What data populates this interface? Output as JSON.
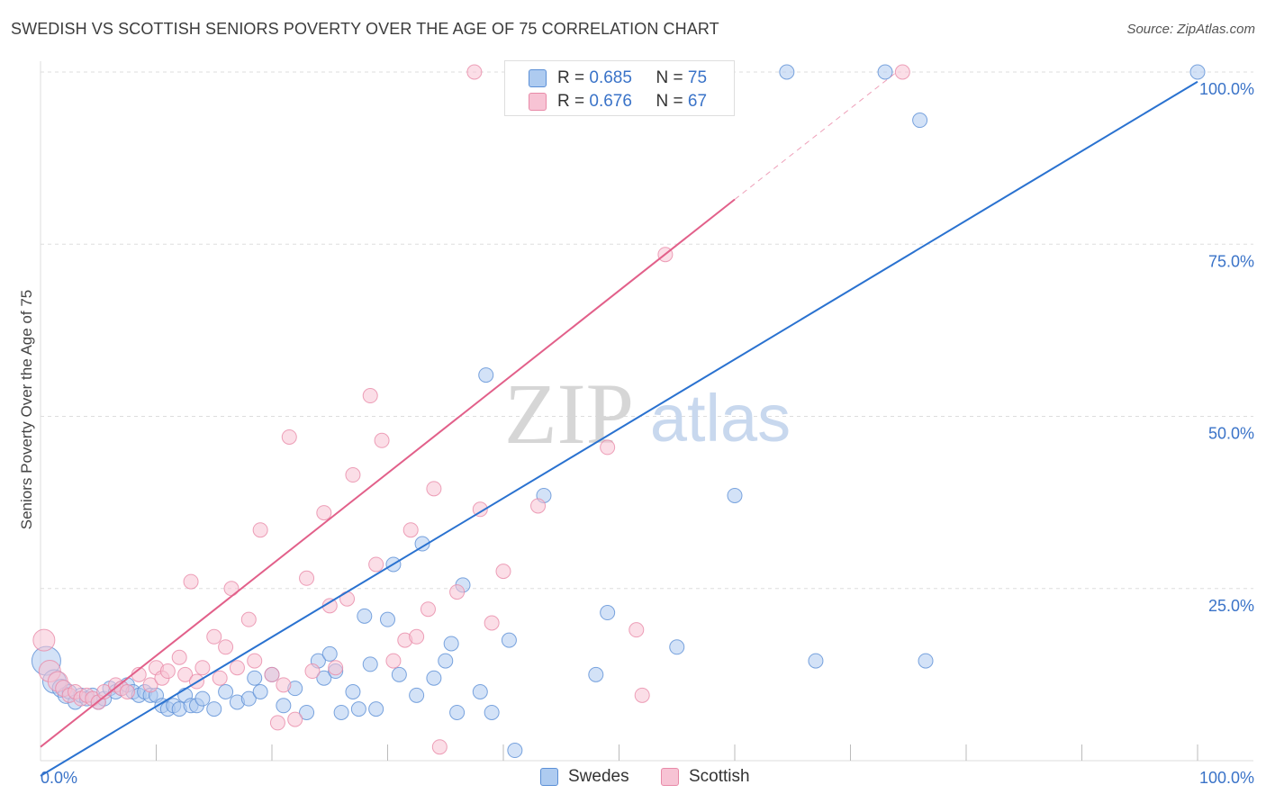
{
  "title": "SWEDISH VS SCOTTISH SENIORS POVERTY OVER THE AGE OF 75 CORRELATION CHART",
  "source": "Source: ZipAtlas.com",
  "watermark": {
    "zip": "ZIP",
    "atlas": "atlas"
  },
  "legend": {
    "swedes": {
      "r_label": "R =",
      "r_value": "0.685",
      "n_label": "N =",
      "n_value": "75"
    },
    "scottish": {
      "r_label": "R =",
      "r_value": "0.676",
      "n_label": "N =",
      "n_value": "67"
    }
  },
  "bottom_legend": {
    "swedes": "Swedes",
    "scottish": "Scottish"
  },
  "colors": {
    "swedes_fill": "#aecbf0",
    "swedes_stroke": "#5b8fd6",
    "swedes_line": "#2a72d0",
    "scottish_fill": "#f7c3d4",
    "scottish_stroke": "#e88aa8",
    "scottish_line": "#e2608a",
    "axis_label": "#3a73c8",
    "grid": "#dddddd"
  },
  "chart_data": {
    "type": "scatter",
    "title": "SWEDISH VS SCOTTISH SENIORS POVERTY OVER THE AGE OF 75 CORRELATION CHART",
    "xlabel": "",
    "ylabel": "Seniors Poverty Over the Age of 75",
    "xlim": [
      0,
      100
    ],
    "ylim": [
      0,
      100
    ],
    "x_tick_labels": [
      "0.0%",
      "100.0%"
    ],
    "y_tick_labels": [
      "25.0%",
      "50.0%",
      "75.0%",
      "100.0%"
    ],
    "y_ticks": [
      25,
      50,
      75,
      100
    ],
    "grid": true,
    "series": [
      {
        "name": "Swedes",
        "R": 0.685,
        "N": 75,
        "trend": {
          "x": [
            0,
            100
          ],
          "y": [
            -2.2,
            98.6
          ]
        },
        "points": [
          {
            "x": 0.5,
            "y": 14.5,
            "s": 16
          },
          {
            "x": 1.2,
            "y": 11.5,
            "s": 13
          },
          {
            "x": 1.8,
            "y": 10.5,
            "s": 10
          },
          {
            "x": 2.2,
            "y": 9.5,
            "s": 9
          },
          {
            "x": 2.5,
            "y": 10.0,
            "s": 8
          },
          {
            "x": 3.0,
            "y": 8.5,
            "s": 8
          },
          {
            "x": 3.5,
            "y": 9.5,
            "s": 8
          },
          {
            "x": 4.0,
            "y": 9.0,
            "s": 8
          },
          {
            "x": 4.5,
            "y": 9.5,
            "s": 8
          },
          {
            "x": 5.0,
            "y": 8.5,
            "s": 8
          },
          {
            "x": 5.5,
            "y": 9.0,
            "s": 8
          },
          {
            "x": 6.0,
            "y": 10.5,
            "s": 8
          },
          {
            "x": 6.5,
            "y": 10.0,
            "s": 8
          },
          {
            "x": 7.0,
            "y": 10.5,
            "s": 8
          },
          {
            "x": 7.5,
            "y": 11.0,
            "s": 8
          },
          {
            "x": 8.0,
            "y": 10.0,
            "s": 8
          },
          {
            "x": 8.5,
            "y": 9.5,
            "s": 8
          },
          {
            "x": 9.0,
            "y": 10.0,
            "s": 8
          },
          {
            "x": 9.5,
            "y": 9.5,
            "s": 8
          },
          {
            "x": 10.0,
            "y": 9.5,
            "s": 8
          },
          {
            "x": 10.5,
            "y": 8.0,
            "s": 8
          },
          {
            "x": 11.0,
            "y": 7.5,
            "s": 8
          },
          {
            "x": 11.5,
            "y": 8.0,
            "s": 8
          },
          {
            "x": 12.0,
            "y": 7.5,
            "s": 8
          },
          {
            "x": 12.5,
            "y": 9.5,
            "s": 8
          },
          {
            "x": 13.0,
            "y": 8.0,
            "s": 8
          },
          {
            "x": 13.5,
            "y": 8.0,
            "s": 8
          },
          {
            "x": 14.0,
            "y": 9.0,
            "s": 8
          },
          {
            "x": 15.0,
            "y": 7.5,
            "s": 8
          },
          {
            "x": 16.0,
            "y": 10.0,
            "s": 8
          },
          {
            "x": 17.0,
            "y": 8.5,
            "s": 8
          },
          {
            "x": 18.0,
            "y": 9.0,
            "s": 8
          },
          {
            "x": 18.5,
            "y": 12.0,
            "s": 8
          },
          {
            "x": 19.0,
            "y": 10.0,
            "s": 8
          },
          {
            "x": 20.0,
            "y": 12.5,
            "s": 8
          },
          {
            "x": 21.0,
            "y": 8.0,
            "s": 8
          },
          {
            "x": 22.0,
            "y": 10.5,
            "s": 8
          },
          {
            "x": 23.0,
            "y": 7.0,
            "s": 8
          },
          {
            "x": 24.0,
            "y": 14.5,
            "s": 8
          },
          {
            "x": 24.5,
            "y": 12.0,
            "s": 8
          },
          {
            "x": 25.0,
            "y": 15.5,
            "s": 8
          },
          {
            "x": 25.5,
            "y": 13.0,
            "s": 8
          },
          {
            "x": 26.0,
            "y": 7.0,
            "s": 8
          },
          {
            "x": 27.0,
            "y": 10.0,
            "s": 8
          },
          {
            "x": 27.5,
            "y": 7.5,
            "s": 8
          },
          {
            "x": 28.0,
            "y": 21.0,
            "s": 8
          },
          {
            "x": 28.5,
            "y": 14.0,
            "s": 8
          },
          {
            "x": 29.0,
            "y": 7.5,
            "s": 8
          },
          {
            "x": 30.0,
            "y": 20.5,
            "s": 8
          },
          {
            "x": 30.5,
            "y": 28.5,
            "s": 8
          },
          {
            "x": 31.0,
            "y": 12.5,
            "s": 8
          },
          {
            "x": 32.5,
            "y": 9.5,
            "s": 8
          },
          {
            "x": 33.0,
            "y": 31.5,
            "s": 8
          },
          {
            "x": 34.0,
            "y": 12.0,
            "s": 8
          },
          {
            "x": 35.0,
            "y": 14.5,
            "s": 8
          },
          {
            "x": 35.5,
            "y": 17.0,
            "s": 8
          },
          {
            "x": 36.0,
            "y": 7.0,
            "s": 8
          },
          {
            "x": 36.5,
            "y": 25.5,
            "s": 8
          },
          {
            "x": 38.0,
            "y": 10.0,
            "s": 8
          },
          {
            "x": 38.5,
            "y": 56.0,
            "s": 8
          },
          {
            "x": 39.0,
            "y": 7.0,
            "s": 8
          },
          {
            "x": 40.5,
            "y": 17.5,
            "s": 8
          },
          {
            "x": 41.0,
            "y": 1.5,
            "s": 8
          },
          {
            "x": 42.0,
            "y": 100.0,
            "s": 8
          },
          {
            "x": 43.5,
            "y": 38.5,
            "s": 8
          },
          {
            "x": 48.0,
            "y": 12.5,
            "s": 8
          },
          {
            "x": 49.0,
            "y": 21.5,
            "s": 8
          },
          {
            "x": 55.0,
            "y": 16.5,
            "s": 8
          },
          {
            "x": 60.0,
            "y": 38.5,
            "s": 8
          },
          {
            "x": 64.5,
            "y": 100.0,
            "s": 8
          },
          {
            "x": 67.0,
            "y": 14.5,
            "s": 8
          },
          {
            "x": 73.0,
            "y": 100.0,
            "s": 8
          },
          {
            "x": 76.5,
            "y": 14.5,
            "s": 8
          },
          {
            "x": 76.0,
            "y": 93.0,
            "s": 8
          },
          {
            "x": 100.0,
            "y": 100.0,
            "s": 8
          }
        ]
      },
      {
        "name": "Scottish",
        "R": 0.676,
        "N": 67,
        "trend": {
          "x": [
            0,
            60
          ],
          "y": [
            2.0,
            81.5
          ]
        },
        "trend_dashed": {
          "x": [
            60,
            74
          ],
          "y": [
            81.5,
            100
          ]
        },
        "points": [
          {
            "x": 0.3,
            "y": 17.5,
            "s": 12
          },
          {
            "x": 0.8,
            "y": 13.0,
            "s": 12
          },
          {
            "x": 1.5,
            "y": 11.5,
            "s": 11
          },
          {
            "x": 2.0,
            "y": 10.5,
            "s": 9
          },
          {
            "x": 2.5,
            "y": 9.5,
            "s": 8
          },
          {
            "x": 3.0,
            "y": 10.0,
            "s": 8
          },
          {
            "x": 3.5,
            "y": 9.0,
            "s": 8
          },
          {
            "x": 4.0,
            "y": 9.5,
            "s": 8
          },
          {
            "x": 4.5,
            "y": 9.0,
            "s": 8
          },
          {
            "x": 5.0,
            "y": 8.5,
            "s": 8
          },
          {
            "x": 5.5,
            "y": 10.0,
            "s": 8
          },
          {
            "x": 6.5,
            "y": 11.0,
            "s": 8
          },
          {
            "x": 7.0,
            "y": 10.5,
            "s": 8
          },
          {
            "x": 7.5,
            "y": 10.0,
            "s": 8
          },
          {
            "x": 8.5,
            "y": 12.5,
            "s": 8
          },
          {
            "x": 9.5,
            "y": 11.0,
            "s": 8
          },
          {
            "x": 10.0,
            "y": 13.5,
            "s": 8
          },
          {
            "x": 10.5,
            "y": 12.0,
            "s": 8
          },
          {
            "x": 11.0,
            "y": 13.0,
            "s": 8
          },
          {
            "x": 12.0,
            "y": 15.0,
            "s": 8
          },
          {
            "x": 12.5,
            "y": 12.5,
            "s": 8
          },
          {
            "x": 13.0,
            "y": 26.0,
            "s": 8
          },
          {
            "x": 13.5,
            "y": 11.5,
            "s": 8
          },
          {
            "x": 14.0,
            "y": 13.5,
            "s": 8
          },
          {
            "x": 15.0,
            "y": 18.0,
            "s": 8
          },
          {
            "x": 15.5,
            "y": 12.0,
            "s": 8
          },
          {
            "x": 16.0,
            "y": 16.5,
            "s": 8
          },
          {
            "x": 16.5,
            "y": 25.0,
            "s": 8
          },
          {
            "x": 17.0,
            "y": 13.5,
            "s": 8
          },
          {
            "x": 18.0,
            "y": 20.5,
            "s": 8
          },
          {
            "x": 18.5,
            "y": 14.5,
            "s": 8
          },
          {
            "x": 19.0,
            "y": 33.5,
            "s": 8
          },
          {
            "x": 20.0,
            "y": 12.5,
            "s": 8
          },
          {
            "x": 20.5,
            "y": 5.5,
            "s": 8
          },
          {
            "x": 21.0,
            "y": 11.0,
            "s": 8
          },
          {
            "x": 21.5,
            "y": 47.0,
            "s": 8
          },
          {
            "x": 22.0,
            "y": 6.0,
            "s": 8
          },
          {
            "x": 23.0,
            "y": 26.5,
            "s": 8
          },
          {
            "x": 23.5,
            "y": 13.0,
            "s": 8
          },
          {
            "x": 24.5,
            "y": 36.0,
            "s": 8
          },
          {
            "x": 25.0,
            "y": 22.5,
            "s": 8
          },
          {
            "x": 25.5,
            "y": 13.5,
            "s": 8
          },
          {
            "x": 26.5,
            "y": 23.5,
            "s": 8
          },
          {
            "x": 27.0,
            "y": 41.5,
            "s": 8
          },
          {
            "x": 28.5,
            "y": 53.0,
            "s": 8
          },
          {
            "x": 29.0,
            "y": 28.5,
            "s": 8
          },
          {
            "x": 29.5,
            "y": 46.5,
            "s": 8
          },
          {
            "x": 30.5,
            "y": 14.5,
            "s": 8
          },
          {
            "x": 31.5,
            "y": 17.5,
            "s": 8
          },
          {
            "x": 32.0,
            "y": 33.5,
            "s": 8
          },
          {
            "x": 32.5,
            "y": 18.0,
            "s": 8
          },
          {
            "x": 33.5,
            "y": 22.0,
            "s": 8
          },
          {
            "x": 34.0,
            "y": 39.5,
            "s": 8
          },
          {
            "x": 34.5,
            "y": 2.0,
            "s": 8
          },
          {
            "x": 36.0,
            "y": 24.5,
            "s": 8
          },
          {
            "x": 37.5,
            "y": 100.0,
            "s": 8
          },
          {
            "x": 38.0,
            "y": 36.5,
            "s": 8
          },
          {
            "x": 39.0,
            "y": 20.0,
            "s": 8
          },
          {
            "x": 40.0,
            "y": 27.5,
            "s": 8
          },
          {
            "x": 41.5,
            "y": 100.0,
            "s": 8
          },
          {
            "x": 43.0,
            "y": 37.0,
            "s": 8
          },
          {
            "x": 47.5,
            "y": 100.0,
            "s": 8
          },
          {
            "x": 49.0,
            "y": 45.5,
            "s": 8
          },
          {
            "x": 51.5,
            "y": 19.0,
            "s": 8
          },
          {
            "x": 52.0,
            "y": 9.5,
            "s": 8
          },
          {
            "x": 54.0,
            "y": 73.5,
            "s": 8
          },
          {
            "x": 74.5,
            "y": 100.0,
            "s": 8
          }
        ]
      }
    ]
  }
}
